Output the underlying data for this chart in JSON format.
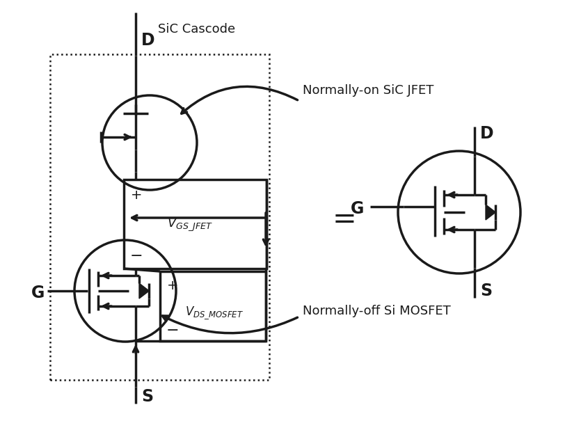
{
  "bg_color": "#ffffff",
  "line_color": "#1a1a1a",
  "labels": {
    "D_top": "D",
    "S_bottom": "S",
    "G_left": "G",
    "sic_cascode": "SiC Cascode",
    "normally_on": "Normally-on SiC JFET",
    "normally_off": "Normally-off Si MOSFET",
    "vgs_plus": "+",
    "vgs_minus": "−",
    "vds_plus": "+",
    "vds_minus": "−",
    "D_right": "D",
    "S_right": "S",
    "G_right": "G",
    "equals": "="
  },
  "lw": 2.5,
  "lw_thin": 1.8
}
